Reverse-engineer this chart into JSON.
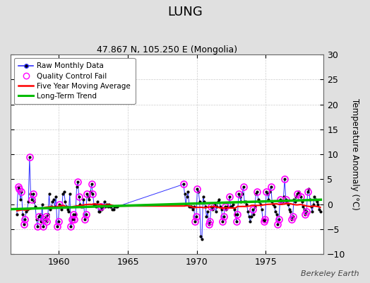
{
  "title": "LUNG",
  "subtitle": "47.867 N, 105.250 E (Mongolia)",
  "ylabel": "Temperature Anomaly (°C)",
  "watermark": "Berkeley Earth",
  "ylim": [
    -10,
    30
  ],
  "xlim": [
    1956.5,
    1979.2
  ],
  "yticks": [
    -10,
    -5,
    0,
    5,
    10,
    15,
    20,
    25,
    30
  ],
  "xticks": [
    1960,
    1965,
    1970,
    1975
  ],
  "background_color": "#e0e0e0",
  "plot_bg_color": "#ffffff",
  "raw_color": "#3030ff",
  "raw_marker_color": "#000000",
  "qc_fail_color": "#ff00ff",
  "moving_avg_color": "#ff0000",
  "trend_color": "#00bb00",
  "raw_data": {
    "years": [
      1956.958,
      1957.042,
      1957.125,
      1957.208,
      1957.292,
      1957.375,
      1957.458,
      1957.542,
      1957.625,
      1957.708,
      1957.792,
      1957.875,
      1957.958,
      1958.042,
      1958.125,
      1958.208,
      1958.292,
      1958.375,
      1958.458,
      1958.542,
      1958.625,
      1958.708,
      1958.792,
      1958.875,
      1958.958,
      1959.042,
      1959.125,
      1959.208,
      1959.292,
      1959.375,
      1959.458,
      1959.542,
      1959.625,
      1959.708,
      1959.792,
      1959.875,
      1959.958,
      1960.042,
      1960.125,
      1960.208,
      1960.292,
      1960.375,
      1960.458,
      1960.542,
      1960.625,
      1960.708,
      1960.792,
      1960.875,
      1960.958,
      1961.042,
      1961.125,
      1961.208,
      1961.292,
      1961.375,
      1961.458,
      1961.542,
      1961.625,
      1961.708,
      1961.792,
      1961.875,
      1961.958,
      1962.042,
      1962.125,
      1962.208,
      1962.292,
      1962.375,
      1962.458,
      1962.542,
      1962.625,
      1962.708,
      1962.792,
      1962.875,
      1962.958,
      1963.042,
      1963.125,
      1963.208,
      1963.292,
      1963.375,
      1963.458,
      1963.542,
      1963.625,
      1963.708,
      1963.792,
      1963.875,
      1963.958,
      1964.042,
      1964.125,
      1964.208,
      1969.042,
      1969.125,
      1969.208,
      1969.292,
      1969.375,
      1969.458,
      1969.542,
      1969.625,
      1969.708,
      1969.792,
      1969.875,
      1969.958,
      1970.042,
      1970.125,
      1970.208,
      1970.292,
      1970.375,
      1970.458,
      1970.542,
      1970.625,
      1970.708,
      1970.792,
      1970.875,
      1970.958,
      1971.042,
      1971.125,
      1971.208,
      1971.292,
      1971.375,
      1971.458,
      1971.542,
      1971.625,
      1971.708,
      1971.792,
      1971.875,
      1971.958,
      1972.042,
      1972.125,
      1972.208,
      1972.292,
      1972.375,
      1972.458,
      1972.542,
      1972.625,
      1972.708,
      1972.792,
      1972.875,
      1972.958,
      1973.042,
      1973.125,
      1973.208,
      1973.292,
      1973.375,
      1973.458,
      1973.542,
      1973.625,
      1973.708,
      1973.792,
      1973.875,
      1973.958,
      1974.042,
      1974.125,
      1974.208,
      1974.292,
      1974.375,
      1974.458,
      1974.542,
      1974.625,
      1974.708,
      1974.792,
      1974.875,
      1974.958,
      1975.042,
      1975.125,
      1975.208,
      1975.292,
      1975.375,
      1975.458,
      1975.542,
      1975.625,
      1975.708,
      1975.792,
      1975.875,
      1975.958,
      1976.042,
      1976.125,
      1976.208,
      1976.292,
      1976.375,
      1976.458,
      1976.542,
      1976.625,
      1976.708,
      1976.792,
      1976.875,
      1976.958,
      1977.042,
      1977.125,
      1977.208,
      1977.292,
      1977.375,
      1977.458,
      1977.542,
      1977.625,
      1977.708,
      1977.792,
      1977.875,
      1977.958,
      1978.042,
      1978.125,
      1978.208,
      1978.292,
      1978.375,
      1978.458,
      1978.542,
      1978.625,
      1978.708,
      1978.792,
      1978.875,
      1978.958
    ],
    "values": [
      -2.0,
      3.5,
      3.0,
      1.0,
      2.5,
      -2.0,
      -4.0,
      -3.0,
      -1.5,
      -1.0,
      0.5,
      9.5,
      2.0,
      1.0,
      2.0,
      0.5,
      -0.5,
      -3.0,
      -4.5,
      -2.5,
      -2.0,
      -3.5,
      0.0,
      -4.5,
      -3.0,
      -2.5,
      -3.5,
      -2.0,
      2.0,
      -1.0,
      -0.5,
      0.5,
      1.0,
      -0.5,
      1.5,
      -4.5,
      -3.5,
      0.0,
      -0.5,
      -1.0,
      2.0,
      2.5,
      0.5,
      -0.5,
      -1.0,
      -1.5,
      2.0,
      -4.5,
      -3.0,
      -2.0,
      -3.0,
      -2.0,
      3.5,
      4.5,
      1.5,
      0.0,
      -0.5,
      -0.5,
      1.0,
      -3.0,
      -2.0,
      2.0,
      1.5,
      1.0,
      2.5,
      4.0,
      2.0,
      0.0,
      0.0,
      -0.5,
      0.5,
      -1.5,
      -1.5,
      -0.5,
      -1.0,
      -0.5,
      0.5,
      -0.5,
      0.0,
      -0.5,
      0.0,
      -0.5,
      -0.5,
      -1.0,
      -1.0,
      -0.5,
      -0.5,
      -0.5,
      4.0,
      2.0,
      0.0,
      1.5,
      2.5,
      -0.5,
      -0.5,
      -0.5,
      -1.0,
      -0.5,
      -3.5,
      -2.5,
      3.0,
      2.5,
      0.5,
      -6.5,
      -7.0,
      1.5,
      0.5,
      -0.5,
      -2.5,
      -1.5,
      -4.0,
      -3.5,
      -0.5,
      -1.0,
      -0.5,
      0.0,
      -1.5,
      -0.5,
      0.5,
      1.0,
      -0.5,
      -1.0,
      -3.5,
      -2.5,
      -0.5,
      -1.0,
      -0.5,
      -0.5,
      1.5,
      -0.5,
      -0.5,
      0.0,
      -1.0,
      -2.0,
      -3.5,
      -2.0,
      2.0,
      1.5,
      0.5,
      2.0,
      3.5,
      0.5,
      0.5,
      0.0,
      -1.5,
      -2.5,
      -3.5,
      -2.5,
      -1.0,
      -2.0,
      -0.5,
      2.0,
      2.5,
      1.0,
      0.5,
      0.0,
      -1.0,
      -3.0,
      -3.5,
      -3.0,
      2.5,
      2.0,
      1.0,
      2.5,
      3.5,
      0.5,
      0.0,
      -0.5,
      -1.5,
      -2.0,
      -4.0,
      -3.0,
      1.0,
      0.5,
      0.5,
      1.5,
      5.0,
      1.0,
      0.5,
      0.0,
      -1.0,
      -1.5,
      -3.0,
      -2.5,
      1.0,
      0.5,
      1.5,
      2.0,
      2.5,
      2.0,
      1.5,
      0.5,
      -0.5,
      -1.0,
      -2.0,
      -1.5,
      2.5,
      3.0,
      1.0,
      -0.5,
      -1.5,
      0.0,
      1.5,
      1.0,
      0.5,
      0.0,
      -1.0,
      -1.5
    ]
  },
  "qc_fail_years": [
    1957.042,
    1957.125,
    1957.292,
    1957.458,
    1957.542,
    1957.875,
    1958.042,
    1958.125,
    1958.458,
    1958.542,
    1958.875,
    1958.958,
    1959.042,
    1959.125,
    1959.875,
    1959.958,
    1960.042,
    1960.875,
    1960.958,
    1961.042,
    1961.125,
    1961.375,
    1961.458,
    1961.875,
    1961.958,
    1962.042,
    1962.375,
    1962.458,
    1963.042,
    1969.042,
    1969.875,
    1969.958,
    1970.042,
    1970.875,
    1970.958,
    1971.042,
    1971.875,
    1971.958,
    1972.042,
    1972.375,
    1972.875,
    1972.958,
    1973.042,
    1973.375,
    1974.042,
    1974.375,
    1974.875,
    1974.958,
    1975.042,
    1975.375,
    1975.875,
    1975.958,
    1976.042,
    1976.375,
    1976.458,
    1976.875,
    1976.958,
    1977.542,
    1977.875,
    1977.958,
    1978.042,
    1977.292
  ],
  "trend_years": [
    1956.5,
    1979.0
  ],
  "trend_values": [
    -1.0,
    0.9
  ]
}
